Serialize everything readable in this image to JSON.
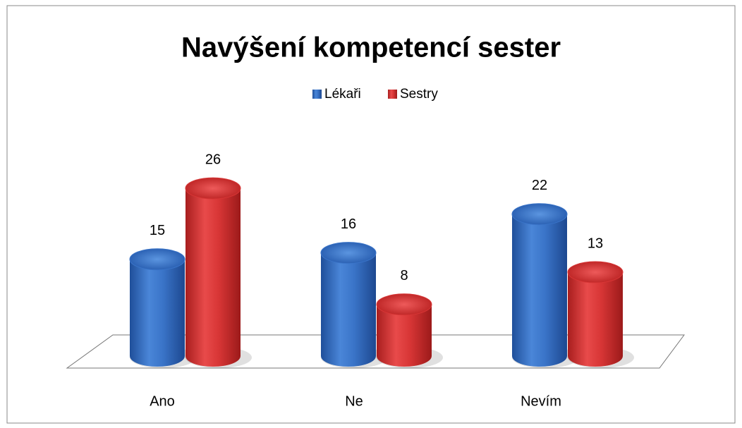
{
  "chart_data": {
    "type": "bar3d-cylinder",
    "title": "Navýšení kompetencí sester",
    "categories": [
      "Ano",
      "Ne",
      "Nevím"
    ],
    "series": [
      {
        "name": "Lékaři",
        "color": "#3a74c8",
        "values": [
          15,
          16,
          22
        ]
      },
      {
        "name": "Sestry",
        "color": "#d83636",
        "values": [
          26,
          8,
          13
        ]
      }
    ],
    "legend": "top"
  }
}
